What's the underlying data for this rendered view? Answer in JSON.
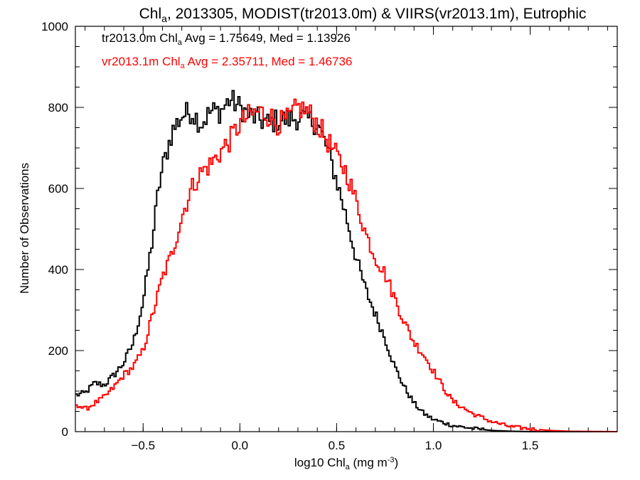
{
  "chart_data": {
    "type": "line",
    "style": "histogram-step",
    "title": {
      "pre": "Chl",
      "sub": "a",
      "post": ", 2013305, MODIST(tr2013.0m) & VIIRS(vr2013.1m), Eutrophic"
    },
    "xlabel": {
      "pre": "log10 Chl",
      "sub": "a",
      "mid": " (mg m",
      "sup": "-3",
      "post": ")"
    },
    "ylabel": "Number of Observations",
    "xlim": [
      -0.85,
      1.95
    ],
    "ylim": [
      0,
      1000
    ],
    "x_ticks": [
      -0.5,
      0.0,
      0.5,
      1.0,
      1.5
    ],
    "x_tick_labels": [
      "−0.5",
      "0.0",
      "0.5",
      "1.0",
      "1.5"
    ],
    "y_ticks": [
      0,
      200,
      400,
      600,
      800,
      1000
    ],
    "y_tick_labels": [
      "0",
      "200",
      "400",
      "600",
      "800",
      "1000"
    ],
    "grid": false,
    "annotations": [
      {
        "color": "#000000",
        "pre": "tr2013.0m Chl",
        "sub": "a",
        "post": " Avg = 1.75649, Med = 1.13926"
      },
      {
        "color": "#ff0000",
        "pre": "vr2013.1m Chl",
        "sub": "a",
        "post": " Avg = 2.35711, Med = 1.46736"
      }
    ],
    "series": [
      {
        "color": "#000000",
        "bin_width": 0.01,
        "keypoints": [
          [
            -0.85,
            90
          ],
          [
            -0.8,
            95
          ],
          [
            -0.75,
            120
          ],
          [
            -0.7,
            115
          ],
          [
            -0.65,
            140
          ],
          [
            -0.6,
            170
          ],
          [
            -0.55,
            220
          ],
          [
            -0.5,
            320
          ],
          [
            -0.45,
            480
          ],
          [
            -0.42,
            600
          ],
          [
            -0.4,
            650
          ],
          [
            -0.35,
            740
          ],
          [
            -0.3,
            780
          ],
          [
            -0.25,
            790
          ],
          [
            -0.2,
            760
          ],
          [
            -0.15,
            790
          ],
          [
            -0.1,
            790
          ],
          [
            -0.05,
            820
          ],
          [
            0.0,
            800
          ],
          [
            0.05,
            780
          ],
          [
            0.1,
            770
          ],
          [
            0.15,
            760
          ],
          [
            0.2,
            770
          ],
          [
            0.25,
            770
          ],
          [
            0.3,
            775
          ],
          [
            0.35,
            770
          ],
          [
            0.4,
            760
          ],
          [
            0.45,
            700
          ],
          [
            0.5,
            620
          ],
          [
            0.55,
            530
          ],
          [
            0.6,
            430
          ],
          [
            0.65,
            350
          ],
          [
            0.7,
            290
          ],
          [
            0.75,
            230
          ],
          [
            0.8,
            160
          ],
          [
            0.85,
            110
          ],
          [
            0.9,
            70
          ],
          [
            0.95,
            45
          ],
          [
            1.0,
            30
          ],
          [
            1.1,
            15
          ],
          [
            1.2,
            8
          ],
          [
            1.3,
            3
          ],
          [
            1.4,
            1
          ],
          [
            1.5,
            0
          ],
          [
            1.95,
            0
          ]
        ]
      },
      {
        "color": "#ff0000",
        "bin_width": 0.01,
        "keypoints": [
          [
            -0.85,
            70
          ],
          [
            -0.8,
            55
          ],
          [
            -0.75,
            70
          ],
          [
            -0.7,
            85
          ],
          [
            -0.65,
            110
          ],
          [
            -0.6,
            140
          ],
          [
            -0.55,
            160
          ],
          [
            -0.5,
            200
          ],
          [
            -0.45,
            290
          ],
          [
            -0.4,
            380
          ],
          [
            -0.35,
            440
          ],
          [
            -0.3,
            530
          ],
          [
            -0.25,
            600
          ],
          [
            -0.2,
            640
          ],
          [
            -0.15,
            660
          ],
          [
            -0.1,
            690
          ],
          [
            -0.05,
            720
          ],
          [
            0.0,
            760
          ],
          [
            0.05,
            780
          ],
          [
            0.1,
            790
          ],
          [
            0.15,
            780
          ],
          [
            0.2,
            760
          ],
          [
            0.25,
            770
          ],
          [
            0.3,
            800
          ],
          [
            0.35,
            790
          ],
          [
            0.4,
            760
          ],
          [
            0.45,
            720
          ],
          [
            0.5,
            680
          ],
          [
            0.55,
            640
          ],
          [
            0.6,
            570
          ],
          [
            0.65,
            490
          ],
          [
            0.7,
            430
          ],
          [
            0.75,
            390
          ],
          [
            0.8,
            330
          ],
          [
            0.85,
            270
          ],
          [
            0.9,
            220
          ],
          [
            0.95,
            190
          ],
          [
            1.0,
            150
          ],
          [
            1.05,
            110
          ],
          [
            1.1,
            75
          ],
          [
            1.2,
            45
          ],
          [
            1.3,
            25
          ],
          [
            1.4,
            12
          ],
          [
            1.5,
            7
          ],
          [
            1.6,
            3
          ],
          [
            1.7,
            1
          ],
          [
            1.95,
            0
          ]
        ]
      }
    ]
  }
}
